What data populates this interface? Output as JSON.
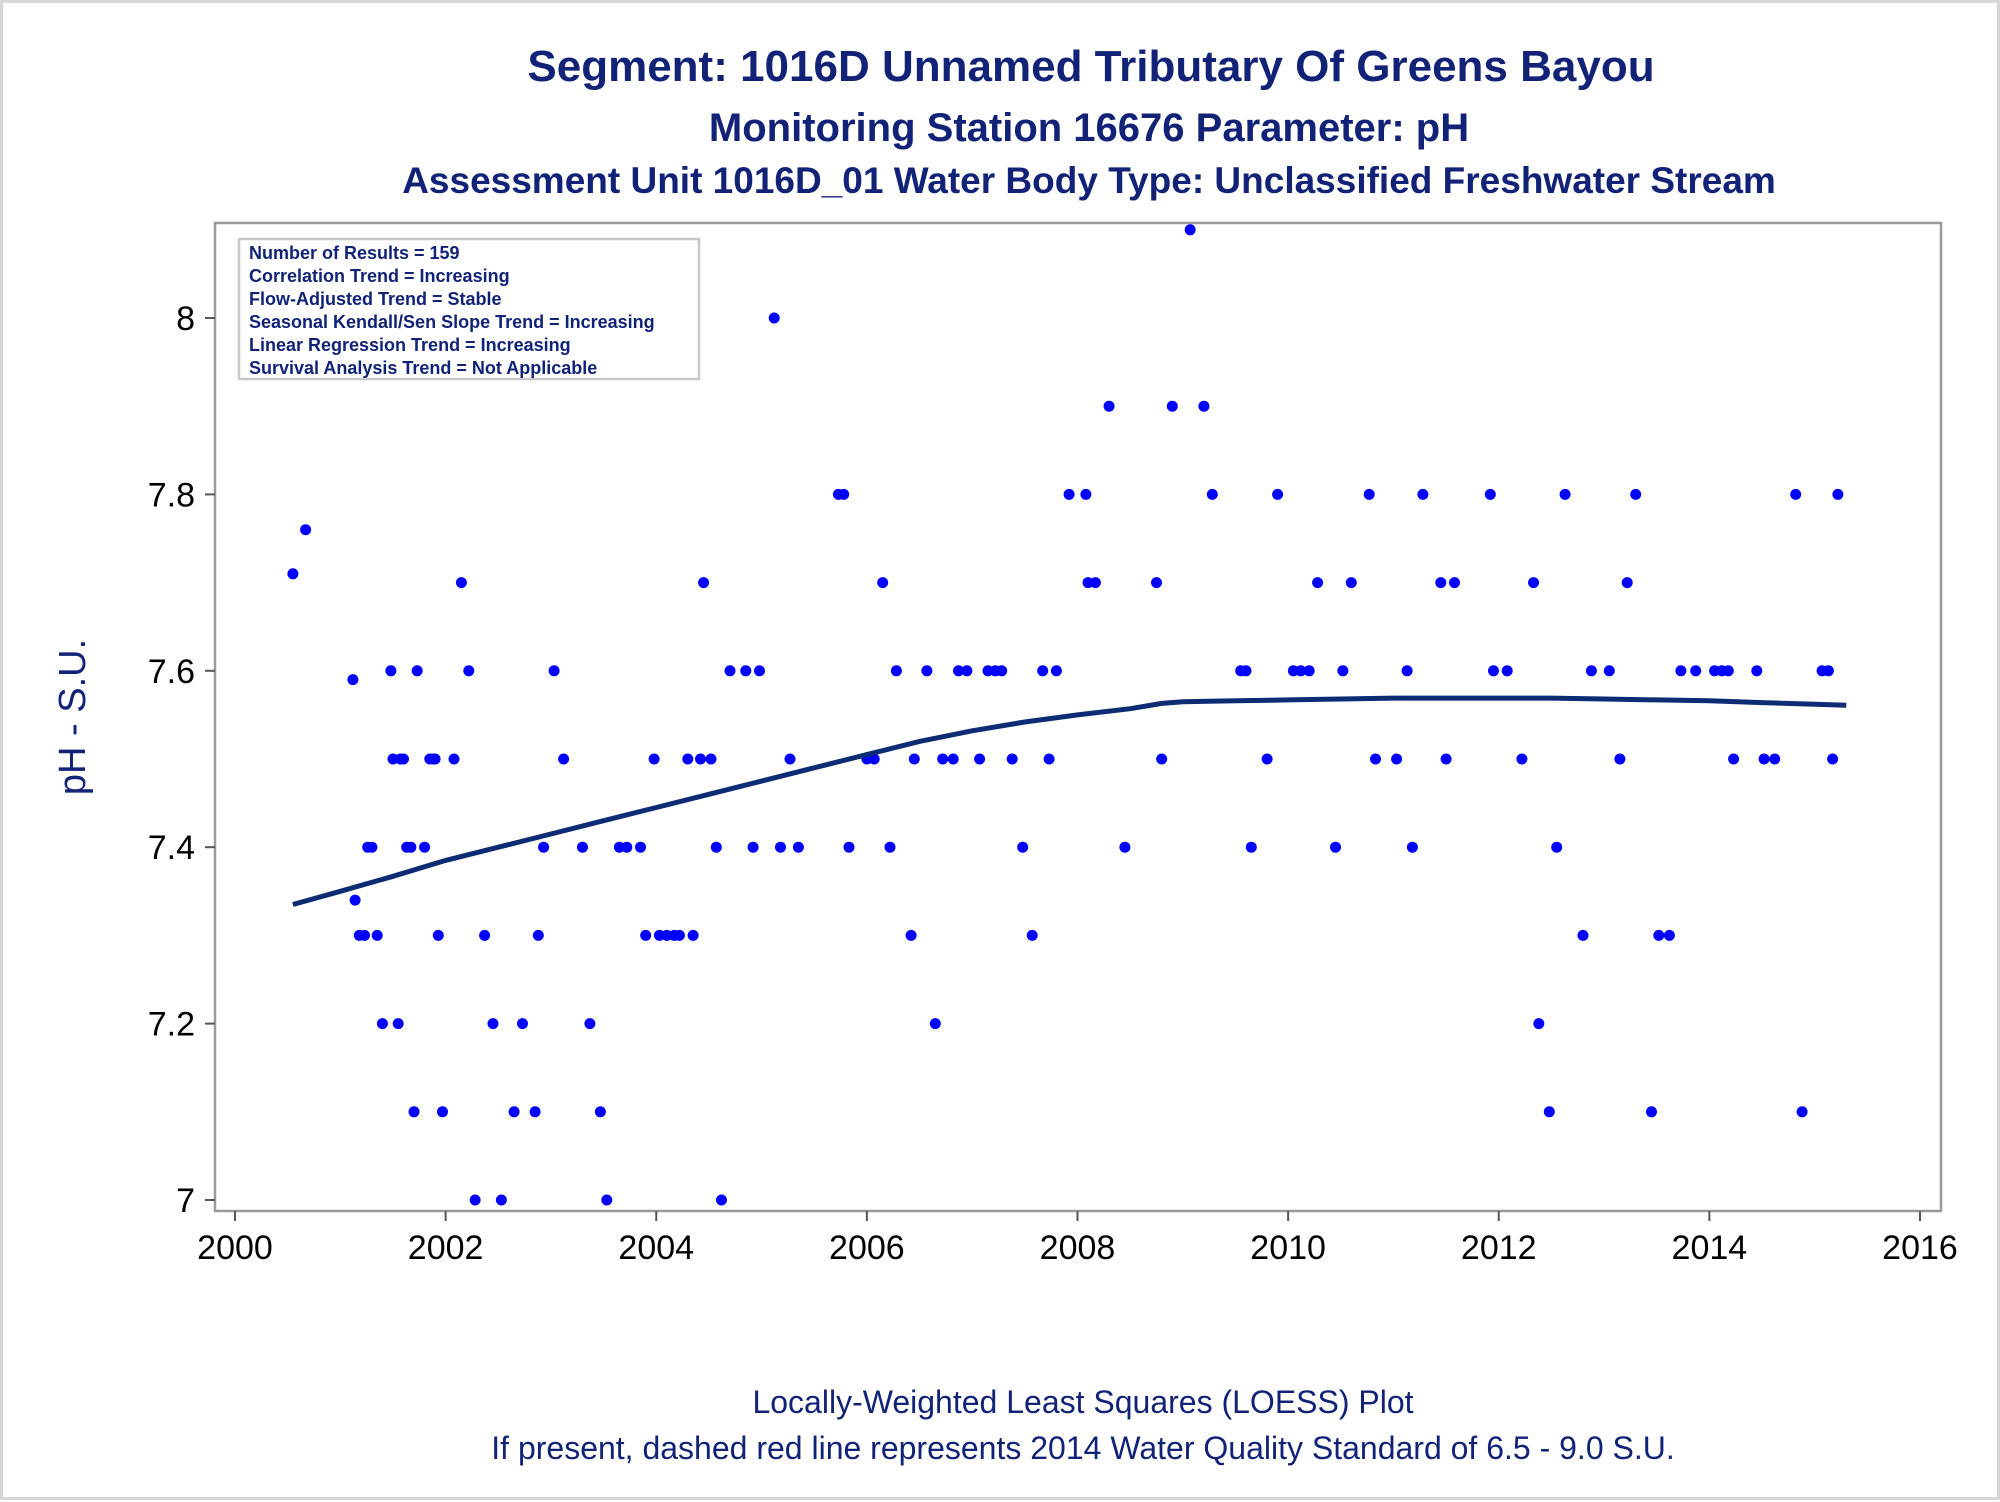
{
  "chart_data": {
    "type": "scatter",
    "title": "Segment: 1016D  Unnamed Tributary Of Greens Bayou",
    "subtitle": "Monitoring Station 16676 Parameter: pH",
    "subtitle2": "Assessment Unit 1016D_01   Water Body Type: Unclassified Freshwater Stream",
    "xlabel": "",
    "ylabel": "pH - S.U.",
    "xlim": [
      2000,
      2016
    ],
    "ylim": [
      6.985,
      8.1
    ],
    "xticks": [
      2000,
      2002,
      2004,
      2006,
      2008,
      2010,
      2012,
      2014,
      2016
    ],
    "yticks": [
      7,
      7.2,
      7.4,
      7.6,
      7.8,
      8
    ],
    "xtick_labels": [
      "2000",
      "2002",
      "2004",
      "2006",
      "2008",
      "2010",
      "2012",
      "2014",
      "2016"
    ],
    "ytick_labels": [
      "7",
      "7.2",
      "7.4",
      "7.6",
      "7.8",
      "8"
    ],
    "grid": false,
    "legend_position": "top-left",
    "stats_box": [
      "Number of Results = 159",
      "Correlation Trend = Increasing",
      "Flow-Adjusted Trend = Stable",
      "Seasonal Kendall/Sen Slope Trend = Increasing",
      "Linear Regression Trend = Increasing",
      "Survival Analysis Trend = Not Applicable"
    ],
    "footnote1": "Locally-Weighted Least Squares (LOESS) Plot",
    "footnote2": "If present, dashed red line represents 2014 Water Quality Standard of 6.5 - 9.0 S.U.",
    "series": [
      {
        "kind": "points",
        "color": "#0000ff",
        "points": [
          [
            2000.55,
            7.71
          ],
          [
            2000.67,
            7.76
          ],
          [
            2001.12,
            7.59
          ],
          [
            2001.14,
            7.34
          ],
          [
            2001.18,
            7.3
          ],
          [
            2001.23,
            7.3
          ],
          [
            2001.26,
            7.4
          ],
          [
            2001.3,
            7.4
          ],
          [
            2001.35,
            7.3
          ],
          [
            2001.4,
            7.2
          ],
          [
            2001.48,
            7.6
          ],
          [
            2001.5,
            7.5
          ],
          [
            2001.55,
            7.2
          ],
          [
            2001.57,
            7.5
          ],
          [
            2001.6,
            7.5
          ],
          [
            2001.63,
            7.4
          ],
          [
            2001.67,
            7.4
          ],
          [
            2001.7,
            7.1
          ],
          [
            2001.73,
            7.6
          ],
          [
            2001.8,
            7.4
          ],
          [
            2001.85,
            7.5
          ],
          [
            2001.88,
            7.5
          ],
          [
            2001.9,
            7.5
          ],
          [
            2001.93,
            7.3
          ],
          [
            2001.97,
            7.1
          ],
          [
            2002.08,
            7.5
          ],
          [
            2002.15,
            7.7
          ],
          [
            2002.22,
            7.6
          ],
          [
            2002.28,
            7.0
          ],
          [
            2002.37,
            7.3
          ],
          [
            2002.45,
            7.2
          ],
          [
            2002.53,
            7.0
          ],
          [
            2002.65,
            7.1
          ],
          [
            2002.73,
            7.2
          ],
          [
            2002.85,
            7.1
          ],
          [
            2002.88,
            7.3
          ],
          [
            2002.93,
            7.4
          ],
          [
            2003.03,
            7.6
          ],
          [
            2003.12,
            7.5
          ],
          [
            2003.3,
            7.4
          ],
          [
            2003.37,
            7.2
          ],
          [
            2003.47,
            7.1
          ],
          [
            2003.53,
            7.0
          ],
          [
            2003.65,
            7.4
          ],
          [
            2003.72,
            7.4
          ],
          [
            2003.85,
            7.4
          ],
          [
            2003.9,
            7.3
          ],
          [
            2003.98,
            7.5
          ],
          [
            2004.03,
            7.3
          ],
          [
            2004.1,
            7.3
          ],
          [
            2004.17,
            7.3
          ],
          [
            2004.22,
            7.3
          ],
          [
            2004.3,
            7.5
          ],
          [
            2004.35,
            7.3
          ],
          [
            2004.42,
            7.5
          ],
          [
            2004.45,
            7.7
          ],
          [
            2004.52,
            7.5
          ],
          [
            2004.57,
            7.4
          ],
          [
            2004.62,
            7.0
          ],
          [
            2004.7,
            7.6
          ],
          [
            2004.85,
            7.6
          ],
          [
            2004.92,
            7.4
          ],
          [
            2004.98,
            7.6
          ],
          [
            2005.12,
            8.0
          ],
          [
            2005.18,
            7.4
          ],
          [
            2005.27,
            7.5
          ],
          [
            2005.35,
            7.4
          ],
          [
            2005.73,
            7.8
          ],
          [
            2005.78,
            7.8
          ],
          [
            2005.83,
            7.4
          ],
          [
            2006.0,
            7.5
          ],
          [
            2006.07,
            7.5
          ],
          [
            2006.15,
            7.7
          ],
          [
            2006.22,
            7.4
          ],
          [
            2006.28,
            7.6
          ],
          [
            2006.42,
            7.3
          ],
          [
            2006.45,
            7.5
          ],
          [
            2006.57,
            7.6
          ],
          [
            2006.65,
            7.2
          ],
          [
            2006.72,
            7.5
          ],
          [
            2006.82,
            7.5
          ],
          [
            2006.87,
            7.6
          ],
          [
            2006.95,
            7.6
          ],
          [
            2007.07,
            7.5
          ],
          [
            2007.15,
            7.6
          ],
          [
            2007.22,
            7.6
          ],
          [
            2007.28,
            7.6
          ],
          [
            2007.38,
            7.5
          ],
          [
            2007.48,
            7.4
          ],
          [
            2007.57,
            7.3
          ],
          [
            2007.67,
            7.6
          ],
          [
            2007.73,
            7.5
          ],
          [
            2007.8,
            7.6
          ],
          [
            2007.92,
            7.8
          ],
          [
            2008.08,
            7.8
          ],
          [
            2008.1,
            7.7
          ],
          [
            2008.17,
            7.7
          ],
          [
            2008.3,
            7.9
          ],
          [
            2008.45,
            7.4
          ],
          [
            2008.75,
            7.7
          ],
          [
            2008.8,
            7.5
          ],
          [
            2008.9,
            7.9
          ],
          [
            2009.07,
            8.1
          ],
          [
            2009.2,
            7.9
          ],
          [
            2009.28,
            7.8
          ],
          [
            2009.55,
            7.6
          ],
          [
            2009.6,
            7.6
          ],
          [
            2009.65,
            7.4
          ],
          [
            2009.8,
            7.5
          ],
          [
            2009.9,
            7.8
          ],
          [
            2010.05,
            7.6
          ],
          [
            2010.12,
            7.6
          ],
          [
            2010.2,
            7.6
          ],
          [
            2010.28,
            7.7
          ],
          [
            2010.45,
            7.4
          ],
          [
            2010.52,
            7.6
          ],
          [
            2010.6,
            7.7
          ],
          [
            2010.77,
            7.8
          ],
          [
            2010.83,
            7.5
          ],
          [
            2011.03,
            7.5
          ],
          [
            2011.13,
            7.6
          ],
          [
            2011.18,
            7.4
          ],
          [
            2011.28,
            7.8
          ],
          [
            2011.45,
            7.7
          ],
          [
            2011.5,
            7.5
          ],
          [
            2011.58,
            7.7
          ],
          [
            2011.92,
            7.8
          ],
          [
            2011.95,
            7.6
          ],
          [
            2012.08,
            7.6
          ],
          [
            2012.22,
            7.5
          ],
          [
            2012.33,
            7.7
          ],
          [
            2012.38,
            7.2
          ],
          [
            2012.48,
            7.1
          ],
          [
            2012.55,
            7.4
          ],
          [
            2012.63,
            7.8
          ],
          [
            2012.8,
            7.3
          ],
          [
            2012.88,
            7.6
          ],
          [
            2013.05,
            7.6
          ],
          [
            2013.15,
            7.5
          ],
          [
            2013.22,
            7.7
          ],
          [
            2013.3,
            7.8
          ],
          [
            2013.45,
            7.1
          ],
          [
            2013.52,
            7.3
          ],
          [
            2013.62,
            7.3
          ],
          [
            2013.73,
            7.6
          ],
          [
            2013.87,
            7.6
          ],
          [
            2014.05,
            7.6
          ],
          [
            2014.12,
            7.6
          ],
          [
            2014.18,
            7.6
          ],
          [
            2014.23,
            7.5
          ],
          [
            2014.45,
            7.6
          ],
          [
            2014.52,
            7.5
          ],
          [
            2014.62,
            7.5
          ],
          [
            2014.82,
            7.8
          ],
          [
            2014.88,
            7.1
          ],
          [
            2015.07,
            7.6
          ],
          [
            2015.13,
            7.6
          ],
          [
            2015.17,
            7.5
          ],
          [
            2015.22,
            7.8
          ]
        ]
      },
      {
        "kind": "line",
        "color": "#0d2c74",
        "points": [
          [
            2000.55,
            7.335
          ],
          [
            2001.0,
            7.35
          ],
          [
            2001.5,
            7.367
          ],
          [
            2002.0,
            7.385
          ],
          [
            2002.5,
            7.4
          ],
          [
            2003.0,
            7.415
          ],
          [
            2003.5,
            7.43
          ],
          [
            2004.0,
            7.445
          ],
          [
            2004.5,
            7.46
          ],
          [
            2005.0,
            7.475
          ],
          [
            2005.5,
            7.49
          ],
          [
            2006.0,
            7.505
          ],
          [
            2006.5,
            7.52
          ],
          [
            2007.0,
            7.532
          ],
          [
            2007.5,
            7.542
          ],
          [
            2008.0,
            7.55
          ],
          [
            2008.5,
            7.557
          ],
          [
            2008.8,
            7.563
          ],
          [
            2009.0,
            7.565
          ],
          [
            2009.5,
            7.566
          ],
          [
            2010.0,
            7.567
          ],
          [
            2010.5,
            7.568
          ],
          [
            2011.0,
            7.569
          ],
          [
            2011.5,
            7.569
          ],
          [
            2012.0,
            7.569
          ],
          [
            2012.5,
            7.569
          ],
          [
            2013.0,
            7.568
          ],
          [
            2013.5,
            7.567
          ],
          [
            2014.0,
            7.566
          ],
          [
            2014.5,
            7.564
          ],
          [
            2015.0,
            7.562
          ],
          [
            2015.3,
            7.561
          ]
        ]
      }
    ]
  }
}
